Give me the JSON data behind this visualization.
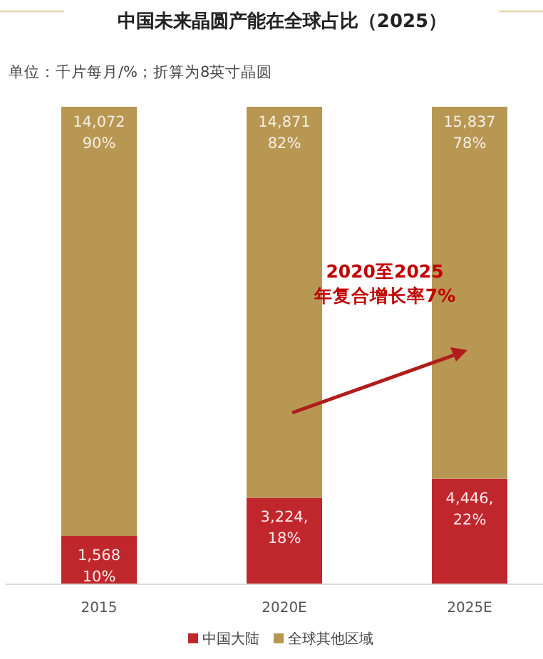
{
  "chart_data": {
    "type": "bar",
    "title": "中国未来晶圆产能在全球占比（2025）",
    "subtitle": "单位：千片每月/%；折算为8英寸晶圆",
    "categories": [
      "2015",
      "2020E",
      "2025E"
    ],
    "stacked": true,
    "series": [
      {
        "name": "中国大陆",
        "color": "#c0272d",
        "values": [
          10,
          18,
          22
        ],
        "value_labels": [
          "1,568\n10%",
          "3,224,\n18%",
          "4,446,\n22%"
        ]
      },
      {
        "name": "全球其他区域",
        "color": "#b89753",
        "values": [
          90,
          82,
          78
        ],
        "value_labels": [
          "14,072\n90%",
          "14,871\n82%",
          "15,837\n78%"
        ]
      }
    ],
    "annotations": [
      "2020至2025\n年复合增长率7%"
    ],
    "legend": "bottom"
  }
}
